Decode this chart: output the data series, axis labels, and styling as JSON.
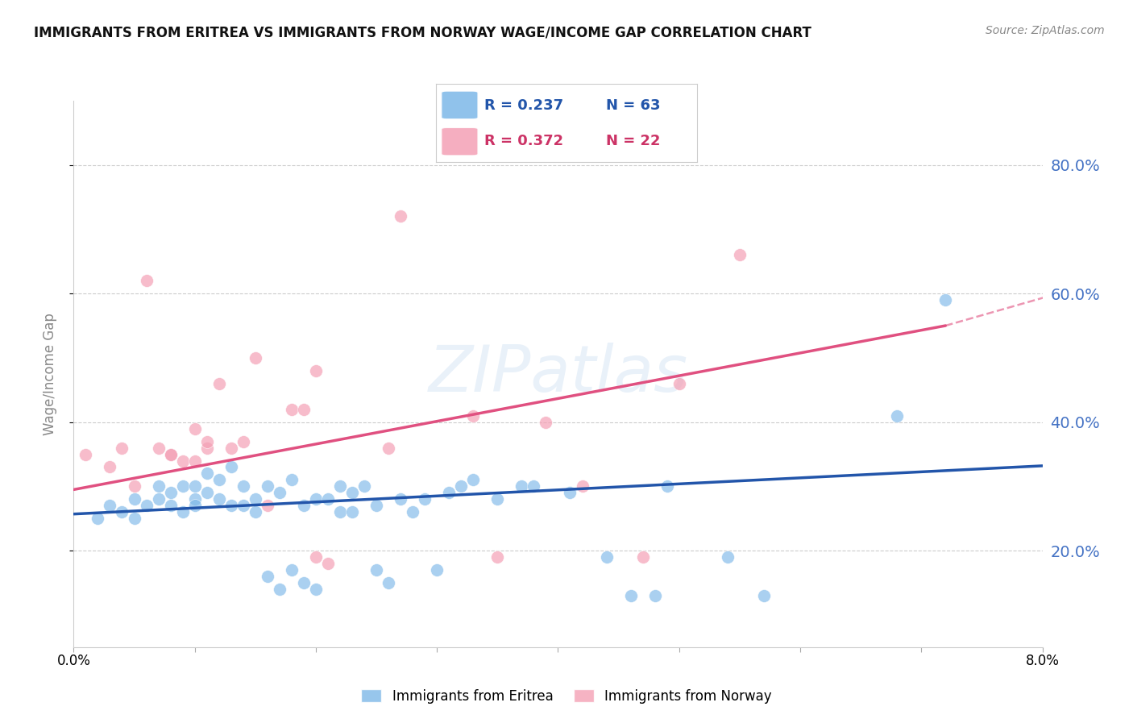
{
  "title": "IMMIGRANTS FROM ERITREA VS IMMIGRANTS FROM NORWAY WAGE/INCOME GAP CORRELATION CHART",
  "source": "Source: ZipAtlas.com",
  "ylabel": "Wage/Income Gap",
  "y_ticks": [
    0.2,
    0.4,
    0.6,
    0.8
  ],
  "y_tick_labels": [
    "20.0%",
    "40.0%",
    "60.0%",
    "80.0%"
  ],
  "x_range": [
    0.0,
    0.08
  ],
  "y_range": [
    0.05,
    0.9
  ],
  "blue_color": "#7DB8E8",
  "pink_color": "#F4A0B5",
  "blue_line_color": "#2255AA",
  "pink_line_color": "#E05080",
  "eritrea_scatter": [
    [
      0.002,
      0.25
    ],
    [
      0.003,
      0.27
    ],
    [
      0.004,
      0.26
    ],
    [
      0.005,
      0.28
    ],
    [
      0.005,
      0.25
    ],
    [
      0.006,
      0.27
    ],
    [
      0.007,
      0.3
    ],
    [
      0.007,
      0.28
    ],
    [
      0.008,
      0.29
    ],
    [
      0.008,
      0.27
    ],
    [
      0.009,
      0.26
    ],
    [
      0.009,
      0.3
    ],
    [
      0.01,
      0.28
    ],
    [
      0.01,
      0.27
    ],
    [
      0.01,
      0.3
    ],
    [
      0.011,
      0.32
    ],
    [
      0.011,
      0.29
    ],
    [
      0.012,
      0.28
    ],
    [
      0.012,
      0.31
    ],
    [
      0.013,
      0.33
    ],
    [
      0.013,
      0.27
    ],
    [
      0.014,
      0.3
    ],
    [
      0.014,
      0.27
    ],
    [
      0.015,
      0.26
    ],
    [
      0.015,
      0.28
    ],
    [
      0.016,
      0.16
    ],
    [
      0.016,
      0.3
    ],
    [
      0.017,
      0.29
    ],
    [
      0.017,
      0.14
    ],
    [
      0.018,
      0.17
    ],
    [
      0.018,
      0.31
    ],
    [
      0.019,
      0.27
    ],
    [
      0.019,
      0.15
    ],
    [
      0.02,
      0.28
    ],
    [
      0.02,
      0.14
    ],
    [
      0.021,
      0.28
    ],
    [
      0.022,
      0.26
    ],
    [
      0.022,
      0.3
    ],
    [
      0.023,
      0.29
    ],
    [
      0.023,
      0.26
    ],
    [
      0.024,
      0.3
    ],
    [
      0.025,
      0.27
    ],
    [
      0.025,
      0.17
    ],
    [
      0.026,
      0.15
    ],
    [
      0.027,
      0.28
    ],
    [
      0.028,
      0.26
    ],
    [
      0.029,
      0.28
    ],
    [
      0.03,
      0.17
    ],
    [
      0.031,
      0.29
    ],
    [
      0.032,
      0.3
    ],
    [
      0.033,
      0.31
    ],
    [
      0.035,
      0.28
    ],
    [
      0.037,
      0.3
    ],
    [
      0.038,
      0.3
    ],
    [
      0.041,
      0.29
    ],
    [
      0.044,
      0.19
    ],
    [
      0.046,
      0.13
    ],
    [
      0.048,
      0.13
    ],
    [
      0.049,
      0.3
    ],
    [
      0.054,
      0.19
    ],
    [
      0.057,
      0.13
    ],
    [
      0.068,
      0.41
    ],
    [
      0.072,
      0.59
    ]
  ],
  "norway_scatter": [
    [
      0.001,
      0.35
    ],
    [
      0.003,
      0.33
    ],
    [
      0.004,
      0.36
    ],
    [
      0.005,
      0.3
    ],
    [
      0.006,
      0.62
    ],
    [
      0.007,
      0.36
    ],
    [
      0.008,
      0.35
    ],
    [
      0.008,
      0.35
    ],
    [
      0.009,
      0.34
    ],
    [
      0.01,
      0.34
    ],
    [
      0.01,
      0.39
    ],
    [
      0.011,
      0.36
    ],
    [
      0.011,
      0.37
    ],
    [
      0.012,
      0.46
    ],
    [
      0.013,
      0.36
    ],
    [
      0.014,
      0.37
    ],
    [
      0.015,
      0.5
    ],
    [
      0.016,
      0.27
    ],
    [
      0.018,
      0.42
    ],
    [
      0.019,
      0.42
    ],
    [
      0.02,
      0.19
    ],
    [
      0.02,
      0.48
    ],
    [
      0.021,
      0.18
    ],
    [
      0.026,
      0.36
    ],
    [
      0.027,
      0.72
    ],
    [
      0.033,
      0.41
    ],
    [
      0.035,
      0.19
    ],
    [
      0.039,
      0.4
    ],
    [
      0.042,
      0.3
    ],
    [
      0.047,
      0.19
    ],
    [
      0.05,
      0.46
    ],
    [
      0.055,
      0.66
    ]
  ],
  "eritrea_trendline": [
    [
      0.0,
      0.257
    ],
    [
      0.08,
      0.332
    ]
  ],
  "norway_trendline": [
    [
      0.0,
      0.295
    ],
    [
      0.072,
      0.55
    ]
  ],
  "norway_trendline_dashed": [
    [
      0.072,
      0.55
    ],
    [
      0.085,
      0.62
    ]
  ]
}
